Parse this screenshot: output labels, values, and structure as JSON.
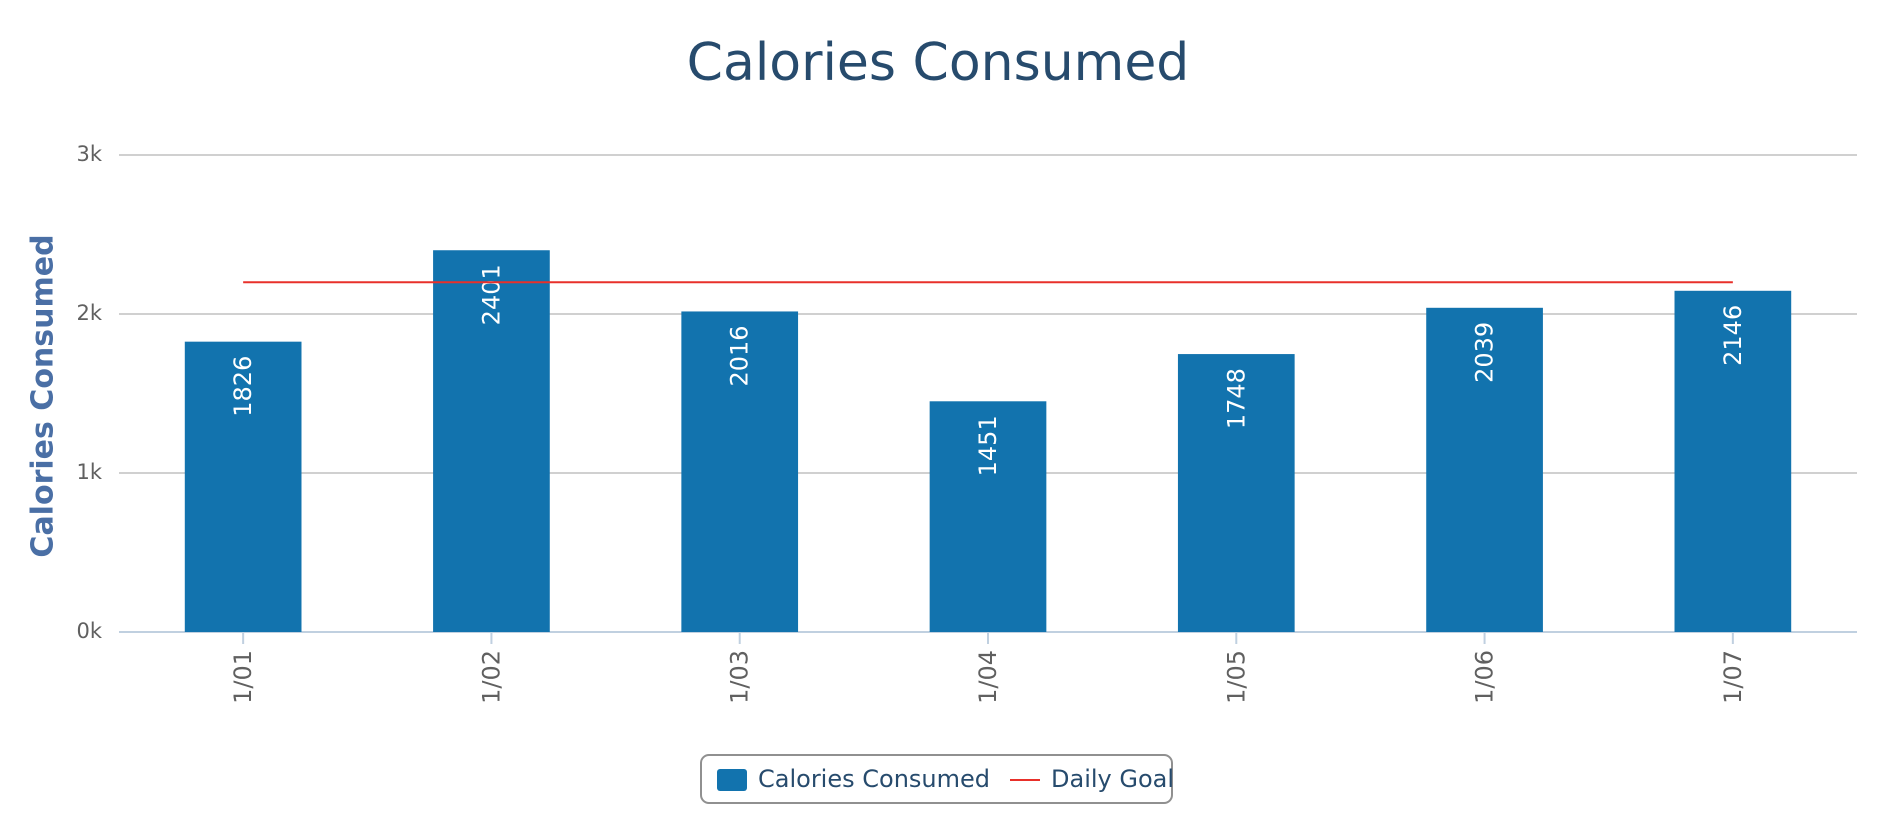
{
  "chart_data": {
    "type": "bar",
    "title": "Calories Consumed",
    "y_axis_label": "Calories Consumed",
    "categories": [
      "1/01",
      "1/02",
      "1/03",
      "1/04",
      "1/05",
      "1/06",
      "1/07"
    ],
    "series": [
      {
        "name": "Calories Consumed",
        "type": "bar",
        "color": "#1273ae",
        "values": [
          1826,
          2401,
          2016,
          1451,
          1748,
          2039,
          2146
        ]
      },
      {
        "name": "Daily Goal",
        "type": "line",
        "color": "#e8302a",
        "values": [
          2200,
          2200,
          2200,
          2200,
          2200,
          2200,
          2200
        ]
      }
    ],
    "ylim": [
      0,
      3000
    ],
    "yticks": [
      {
        "value": 0,
        "label": "0k"
      },
      {
        "value": 1000,
        "label": "1k"
      },
      {
        "value": 2000,
        "label": "2k"
      },
      {
        "value": 3000,
        "label": "3k"
      }
    ],
    "grid": true,
    "legend": "bottom"
  }
}
